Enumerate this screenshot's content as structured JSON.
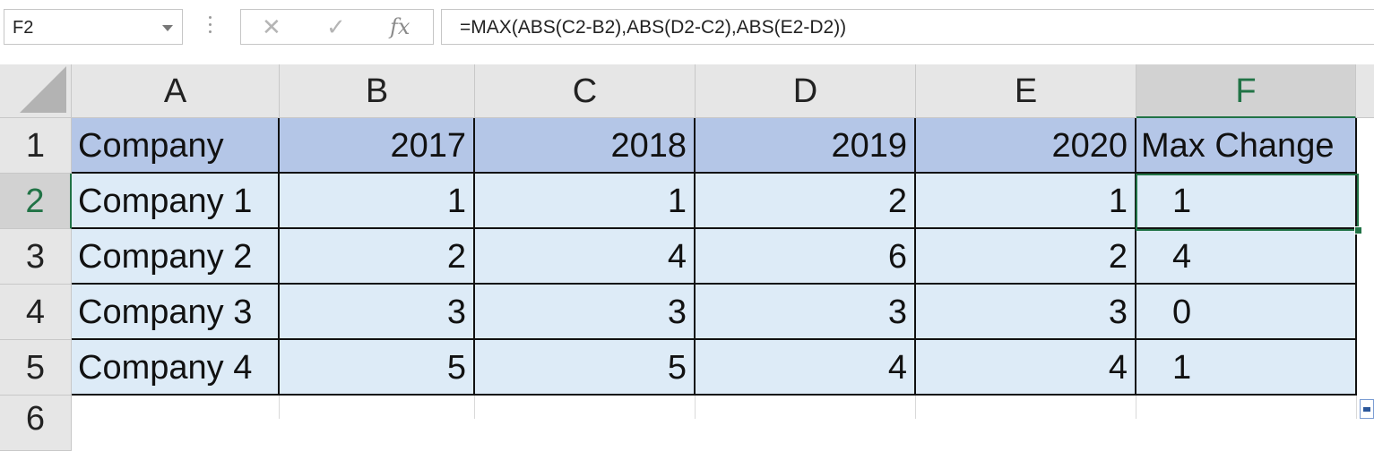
{
  "formula_bar": {
    "name_box": "F2",
    "cancel_icon": "✕",
    "enter_icon": "✓",
    "function_icon": "fx",
    "formula": "=MAX(ABS(C2-B2),ABS(D2-C2),ABS(E2-D2))"
  },
  "columns": [
    "A",
    "B",
    "C",
    "D",
    "E",
    "F"
  ],
  "selected_column": "F",
  "rows": [
    "1",
    "2",
    "3",
    "4",
    "5",
    "6"
  ],
  "selected_row": "2",
  "table": {
    "header": [
      "Company",
      "2017",
      "2018",
      "2019",
      "2020",
      "Max Change"
    ],
    "data": [
      [
        "Company 1",
        "1",
        "1",
        "2",
        "1",
        "1"
      ],
      [
        "Company 2",
        "2",
        "4",
        "6",
        "2",
        "4"
      ],
      [
        "Company 3",
        "3",
        "3",
        "3",
        "3",
        "0"
      ],
      [
        "Company 4",
        "5",
        "5",
        "4",
        "4",
        "1"
      ]
    ]
  },
  "colors": {
    "header_fill": "#b4c6e7",
    "data_fill": "#ddebf7",
    "selection": "#217346"
  }
}
